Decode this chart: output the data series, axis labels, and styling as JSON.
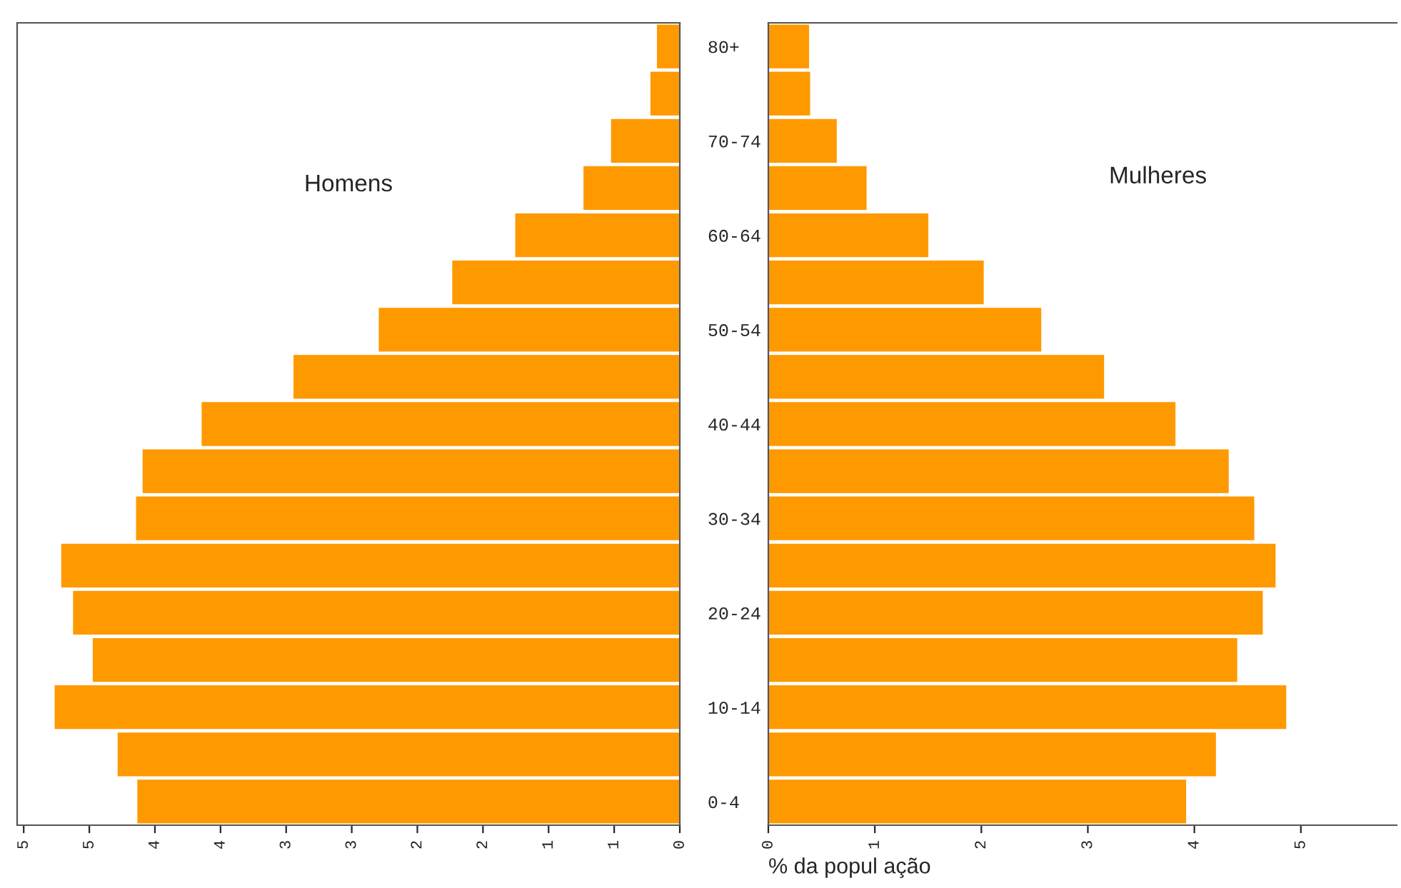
{
  "chart_data": [
    {
      "type": "bar",
      "orientation": "horizontal",
      "categories": [
        "80+",
        null,
        "70-74",
        null,
        "60-64",
        null,
        "50-54",
        null,
        "40-44",
        null,
        "30-34",
        null,
        "20-24",
        null,
        "10-14",
        null,
        "0-4"
      ],
      "series": [
        {
          "name": "Homens",
          "color": "#ff9900",
          "values": [
            0.18,
            0.23,
            0.53,
            0.74,
            1.26,
            1.74,
            2.3,
            2.95,
            3.65,
            4.1,
            4.15,
            4.72,
            4.63,
            4.48,
            4.77,
            4.29,
            4.14
          ]
        }
      ],
      "xlim": [
        5.05,
        0
      ],
      "xticks": [
        {
          "value": 5,
          "label": "5"
        },
        {
          "value": 4.5,
          "label": "5"
        },
        {
          "value": 4,
          "label": "4"
        },
        {
          "value": 3.5,
          "label": "4"
        },
        {
          "value": 3,
          "label": "3"
        },
        {
          "value": 2.5,
          "label": "3"
        },
        {
          "value": 2,
          "label": "2"
        },
        {
          "value": 1.5,
          "label": "2"
        },
        {
          "value": 1,
          "label": "1"
        },
        {
          "value": 0.5,
          "label": "1"
        },
        {
          "value": 0,
          "label": "0"
        }
      ],
      "grid": false,
      "legend": false
    },
    {
      "type": "bar",
      "orientation": "horizontal",
      "series": [
        {
          "name": "Mulheres",
          "color": "#ff9900",
          "values": [
            0.39,
            0.4,
            0.65,
            0.93,
            1.51,
            2.03,
            2.57,
            3.16,
            3.83,
            4.33,
            4.57,
            4.77,
            4.65,
            4.41,
            4.87,
            4.21,
            3.93
          ]
        }
      ],
      "xlabel": "% da popul ação",
      "xlim": [
        0,
        5.9
      ],
      "xticks": [
        0,
        1,
        2,
        3,
        4,
        5
      ],
      "grid": false,
      "legend": false
    }
  ]
}
